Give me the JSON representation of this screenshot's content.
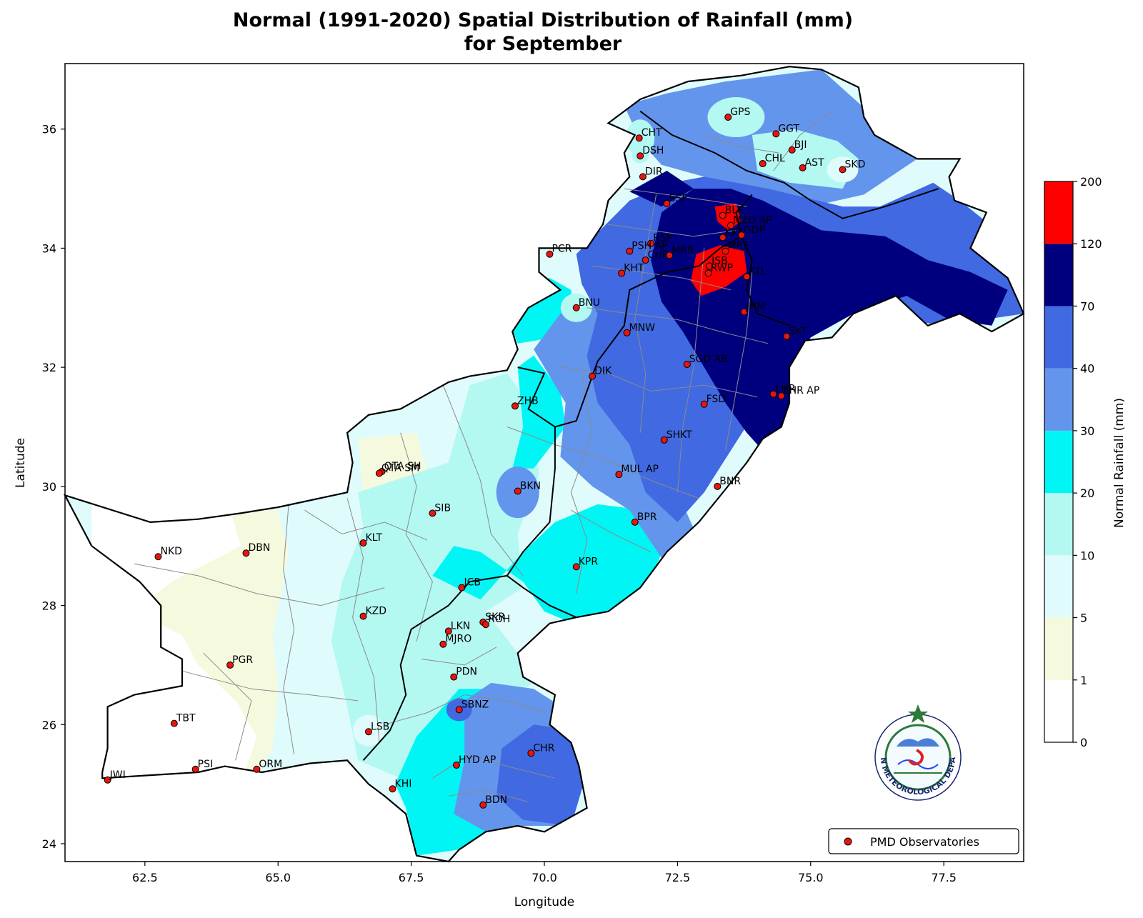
{
  "title_line1": "Normal (1991-2020) Spatial Distribution of Rainfall (mm)",
  "title_line2": "for September",
  "x_axis": {
    "label": "Longitude",
    "ticks": [
      62.5,
      65.0,
      67.5,
      70.0,
      72.5,
      75.0,
      77.5
    ],
    "tick_labels": [
      "62.5",
      "65.0",
      "67.5",
      "70.0",
      "72.5",
      "75.0",
      "77.5"
    ],
    "range": [
      61.0,
      79.0
    ]
  },
  "y_axis": {
    "label": "Latitude",
    "ticks": [
      24,
      26,
      28,
      30,
      32,
      34,
      36
    ],
    "tick_labels": [
      "24",
      "26",
      "28",
      "30",
      "32",
      "34",
      "36"
    ],
    "range": [
      23.7,
      37.1
    ]
  },
  "colorbar": {
    "label": "Normal Rainfall (mm)",
    "levels": [
      "0",
      "1",
      "5",
      "10",
      "20",
      "30",
      "40",
      "70",
      "120",
      "200"
    ],
    "colors": [
      "#ffffff",
      "#f5fadf",
      "#e0fbfb",
      "#b4f8f2",
      "#00f5f5",
      "#6495ed",
      "#4169e1",
      "#00007f",
      "#ff0000"
    ]
  },
  "legend": {
    "label": "PMD Observatories",
    "marker_color": "#e8150c"
  },
  "logo": {
    "text": "PAKISTAN METEOROLOGICAL DEPARTMENT"
  },
  "stations": [
    {
      "code": "CHT",
      "lon": 71.78,
      "lat": 35.85
    },
    {
      "code": "DSH",
      "lon": 71.8,
      "lat": 35.55
    },
    {
      "code": "DIR",
      "lon": 71.85,
      "lat": 35.2
    },
    {
      "code": "GPS",
      "lon": 73.45,
      "lat": 36.2
    },
    {
      "code": "GGT",
      "lon": 74.35,
      "lat": 35.92
    },
    {
      "code": "BJI",
      "lon": 74.65,
      "lat": 35.65
    },
    {
      "code": "CHL",
      "lon": 74.1,
      "lat": 35.42
    },
    {
      "code": "AST",
      "lon": 74.85,
      "lat": 35.35
    },
    {
      "code": "SKD",
      "lon": 75.6,
      "lat": 35.32
    },
    {
      "code": "SSF",
      "lon": 72.3,
      "lat": 34.75
    },
    {
      "code": "BLK",
      "lon": 73.35,
      "lat": 34.55
    },
    {
      "code": "MZD AP",
      "lon": 73.5,
      "lat": 34.38
    },
    {
      "code": "RSP",
      "lon": 72.0,
      "lat": 34.08
    },
    {
      "code": "KKT",
      "lon": 73.35,
      "lat": 34.18
    },
    {
      "code": "GDP",
      "lon": 73.7,
      "lat": 34.22
    },
    {
      "code": "PSH AP",
      "lon": 71.6,
      "lat": 33.95
    },
    {
      "code": "PCR",
      "lon": 70.1,
      "lat": 33.9
    },
    {
      "code": "CHR",
      "lon": 71.9,
      "lat": 33.8
    },
    {
      "code": "MRR",
      "lon": 72.35,
      "lat": 33.88
    },
    {
      "code": "MRE",
      "lon": 73.4,
      "lat": 33.95
    },
    {
      "code": "ISB",
      "lon": 73.1,
      "lat": 33.7
    },
    {
      "code": "RWP",
      "lon": 73.08,
      "lat": 33.58
    },
    {
      "code": "KHT",
      "lon": 71.45,
      "lat": 33.58
    },
    {
      "code": "KTL",
      "lon": 73.8,
      "lat": 33.52
    },
    {
      "code": "BNU",
      "lon": 70.6,
      "lat": 33.0
    },
    {
      "code": "JHM",
      "lon": 73.75,
      "lat": 32.93
    },
    {
      "code": "SKT",
      "lon": 74.55,
      "lat": 32.52
    },
    {
      "code": "MNW",
      "lon": 71.55,
      "lat": 32.58
    },
    {
      "code": "SGD AB",
      "lon": 72.68,
      "lat": 32.05
    },
    {
      "code": "DIK",
      "lon": 70.9,
      "lat": 31.85
    },
    {
      "code": "LHR",
      "lon": 74.3,
      "lat": 31.55
    },
    {
      "code": "LHR AP",
      "lon": 74.45,
      "lat": 31.52
    },
    {
      "code": "ZHB",
      "lon": 69.45,
      "lat": 31.35
    },
    {
      "code": "FSD",
      "lon": 73.0,
      "lat": 31.38
    },
    {
      "code": "SHKT",
      "lon": 72.25,
      "lat": 30.78
    },
    {
      "code": "QTA SH",
      "lon": 66.95,
      "lat": 30.25
    },
    {
      "code": "QTA SM",
      "lon": 66.9,
      "lat": 30.22
    },
    {
      "code": "MUL AP",
      "lon": 71.4,
      "lat": 30.2
    },
    {
      "code": "BNR",
      "lon": 73.25,
      "lat": 30.0
    },
    {
      "code": "BKN",
      "lon": 69.5,
      "lat": 29.92
    },
    {
      "code": "SIB",
      "lon": 67.9,
      "lat": 29.55
    },
    {
      "code": "BPR",
      "lon": 71.7,
      "lat": 29.4
    },
    {
      "code": "KLT",
      "lon": 66.6,
      "lat": 29.05
    },
    {
      "code": "NKD",
      "lon": 62.75,
      "lat": 28.82
    },
    {
      "code": "DBN",
      "lon": 64.4,
      "lat": 28.88
    },
    {
      "code": "KPR",
      "lon": 70.6,
      "lat": 28.65
    },
    {
      "code": "JCB",
      "lon": 68.45,
      "lat": 28.3
    },
    {
      "code": "KZD",
      "lon": 66.6,
      "lat": 27.82
    },
    {
      "code": "SKR",
      "lon": 68.85,
      "lat": 27.72
    },
    {
      "code": "ROH",
      "lon": 68.9,
      "lat": 27.68
    },
    {
      "code": "LKN",
      "lon": 68.2,
      "lat": 27.57
    },
    {
      "code": "MJRO",
      "lon": 68.1,
      "lat": 27.35
    },
    {
      "code": "PGR",
      "lon": 64.1,
      "lat": 27.0
    },
    {
      "code": "PDN",
      "lon": 68.3,
      "lat": 26.8
    },
    {
      "code": "SBNZ",
      "lon": 68.4,
      "lat": 26.25
    },
    {
      "code": "TBT",
      "lon": 63.05,
      "lat": 26.02
    },
    {
      "code": "LSB",
      "lon": 66.7,
      "lat": 25.88
    },
    {
      "code": "CHR",
      "lon": 69.75,
      "lat": 25.52
    },
    {
      "code": "HYD AP",
      "lon": 68.35,
      "lat": 25.32
    },
    {
      "code": "PSI",
      "lon": 63.45,
      "lat": 25.25
    },
    {
      "code": "ORM",
      "lon": 64.6,
      "lat": 25.25
    },
    {
      "code": "JWI",
      "lon": 61.8,
      "lat": 25.07
    },
    {
      "code": "KHI",
      "lon": 67.15,
      "lat": 24.92
    },
    {
      "code": "BDN",
      "lon": 68.85,
      "lat": 24.65
    }
  ]
}
